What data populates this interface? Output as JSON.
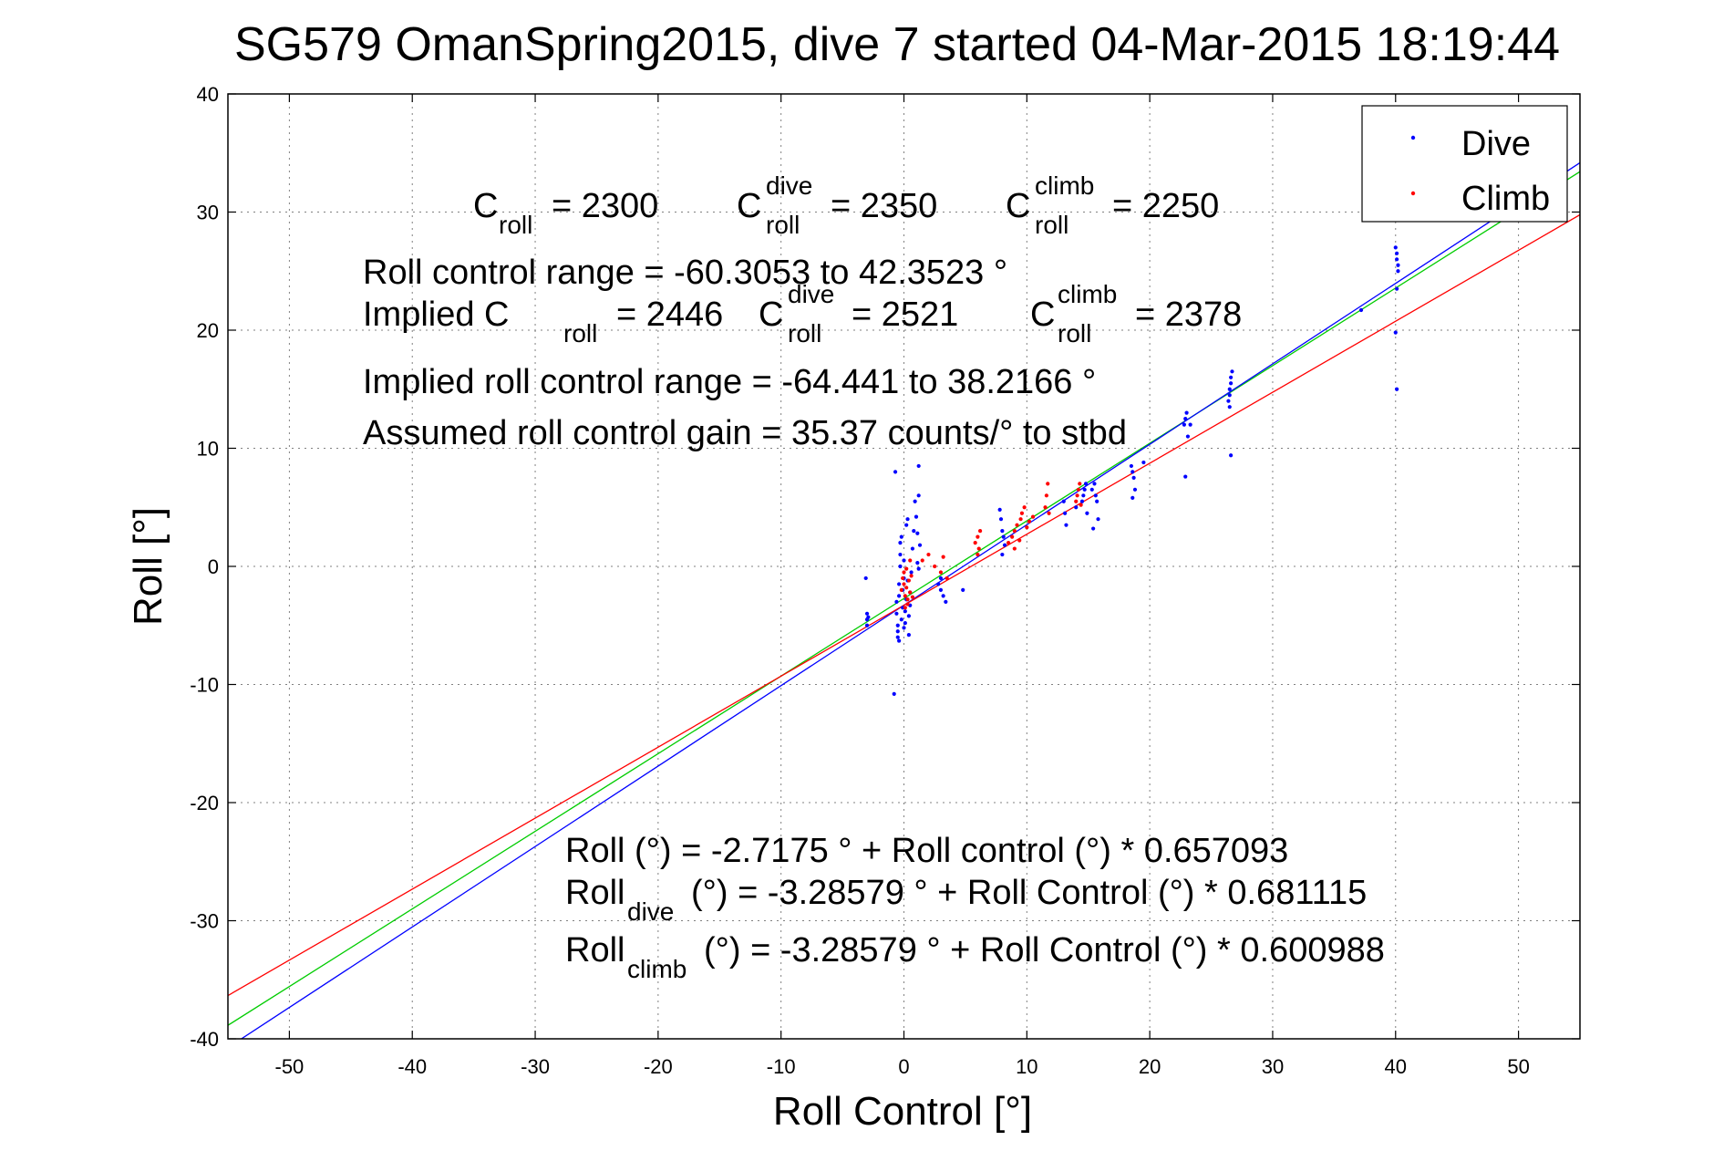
{
  "chart_data": {
    "type": "scatter",
    "title": "SG579 OmanSpring2015, dive 7 started 04-Mar-2015 18:19:44",
    "xlabel": "Roll Control [°]",
    "ylabel": "Roll [°]",
    "xlim": [
      -55,
      55
    ],
    "ylim": [
      -40,
      40
    ],
    "xticks": [
      -50,
      -40,
      -30,
      -20,
      -10,
      0,
      10,
      20,
      30,
      40,
      50
    ],
    "yticks": [
      -40,
      -30,
      -20,
      -10,
      0,
      10,
      20,
      30,
      40
    ],
    "grid": true,
    "legend": {
      "placement": "top-right",
      "entries": [
        "Dive",
        "Climb"
      ]
    },
    "colors": {
      "dive": "#0000ff",
      "climb": "#ff0000",
      "combined_fit": "#00cc00"
    },
    "series": [
      {
        "name": "Dive",
        "color": "#0000ff",
        "points": [
          [
            -3.1,
            -1.0
          ],
          [
            -3.0,
            -4.0
          ],
          [
            -3.0,
            -4.5
          ],
          [
            -3.0,
            -5.0
          ],
          [
            -2.9,
            -4.3
          ],
          [
            -0.8,
            -10.8
          ],
          [
            -0.7,
            8.0
          ],
          [
            -0.6,
            -3.0
          ],
          [
            -0.6,
            -4.0
          ],
          [
            -0.5,
            -5.0
          ],
          [
            -0.5,
            -5.5
          ],
          [
            -0.5,
            -6.0
          ],
          [
            -0.4,
            -6.3
          ],
          [
            -0.4,
            -2.5
          ],
          [
            -0.4,
            -1.5
          ],
          [
            -0.3,
            0.0
          ],
          [
            -0.3,
            1.0
          ],
          [
            -0.3,
            2.0
          ],
          [
            -0.2,
            2.5
          ],
          [
            -0.2,
            -4.5
          ],
          [
            -0.1,
            -3.5
          ],
          [
            -0.1,
            -2.0
          ],
          [
            0.0,
            -1.0
          ],
          [
            0.0,
            0.5
          ],
          [
            0.0,
            -5.2
          ],
          [
            0.1,
            -4.8
          ],
          [
            0.1,
            -3.8
          ],
          [
            0.2,
            -2.8
          ],
          [
            0.2,
            3.5
          ],
          [
            0.3,
            4.0
          ],
          [
            0.3,
            -1.2
          ],
          [
            0.4,
            -4.2
          ],
          [
            0.4,
            -5.8
          ],
          [
            0.5,
            -3.3
          ],
          [
            0.5,
            -2.2
          ],
          [
            0.6,
            -0.5
          ],
          [
            0.7,
            1.5
          ],
          [
            0.8,
            3.0
          ],
          [
            0.9,
            5.5
          ],
          [
            1.0,
            4.2
          ],
          [
            1.1,
            2.8
          ],
          [
            1.1,
            0.3
          ],
          [
            1.2,
            -0.2
          ],
          [
            1.3,
            1.8
          ],
          [
            1.2,
            6.0
          ],
          [
            1.2,
            8.5
          ],
          [
            2.8,
            -1.5
          ],
          [
            3.0,
            -2.0
          ],
          [
            3.2,
            -2.5
          ],
          [
            3.4,
            -3.0
          ],
          [
            3.0,
            -1.0
          ],
          [
            4.8,
            -2.0
          ],
          [
            7.8,
            4.8
          ],
          [
            7.9,
            4.0
          ],
          [
            8.0,
            3.0
          ],
          [
            8.1,
            2.5
          ],
          [
            8.2,
            1.8
          ],
          [
            8.0,
            1.0
          ],
          [
            13.0,
            5.5
          ],
          [
            13.1,
            4.5
          ],
          [
            13.2,
            3.5
          ],
          [
            14.0,
            5.0
          ],
          [
            14.5,
            5.5
          ],
          [
            14.6,
            6.0
          ],
          [
            14.7,
            6.5
          ],
          [
            14.8,
            7.0
          ],
          [
            14.9,
            4.5
          ],
          [
            15.3,
            6.5
          ],
          [
            15.5,
            7.0
          ],
          [
            15.6,
            6.0
          ],
          [
            15.7,
            5.5
          ],
          [
            15.8,
            4.0
          ],
          [
            15.4,
            3.2
          ],
          [
            18.5,
            8.5
          ],
          [
            18.6,
            8.0
          ],
          [
            18.7,
            7.5
          ],
          [
            18.8,
            6.5
          ],
          [
            18.6,
            5.8
          ],
          [
            19.5,
            8.8
          ],
          [
            22.8,
            12.0
          ],
          [
            22.9,
            12.5
          ],
          [
            23.0,
            13.0
          ],
          [
            23.1,
            11.0
          ],
          [
            22.9,
            7.6
          ],
          [
            23.3,
            12.0
          ],
          [
            26.4,
            14.0
          ],
          [
            26.5,
            14.5
          ],
          [
            26.5,
            15.0
          ],
          [
            26.6,
            15.5
          ],
          [
            26.6,
            16.0
          ],
          [
            26.7,
            16.5
          ],
          [
            26.5,
            13.5
          ],
          [
            26.6,
            9.4
          ],
          [
            37.2,
            21.7
          ],
          [
            40.0,
            27.0
          ],
          [
            40.1,
            26.5
          ],
          [
            40.1,
            26.0
          ],
          [
            40.2,
            25.5
          ],
          [
            40.2,
            25.0
          ],
          [
            40.1,
            23.5
          ],
          [
            40.0,
            19.8
          ],
          [
            40.1,
            15.0
          ]
        ]
      },
      {
        "name": "Climb",
        "color": "#ff0000",
        "points": [
          [
            -0.2,
            -2.0
          ],
          [
            -0.1,
            -1.0
          ],
          [
            0.0,
            -0.5
          ],
          [
            0.0,
            -1.5
          ],
          [
            0.1,
            -2.5
          ],
          [
            0.1,
            -3.5
          ],
          [
            0.2,
            -0.2
          ],
          [
            0.2,
            -1.8
          ],
          [
            0.3,
            -2.8
          ],
          [
            0.3,
            -3.2
          ],
          [
            0.4,
            -1.2
          ],
          [
            0.5,
            -2.2
          ],
          [
            0.6,
            -0.8
          ],
          [
            0.7,
            -2.6
          ],
          [
            0.5,
            0.5
          ],
          [
            1.5,
            0.5
          ],
          [
            2.0,
            1.0
          ],
          [
            2.5,
            0.0
          ],
          [
            3.0,
            -0.5
          ],
          [
            3.5,
            -1.0
          ],
          [
            3.2,
            0.8
          ],
          [
            5.8,
            2.0
          ],
          [
            6.0,
            2.5
          ],
          [
            6.2,
            3.0
          ],
          [
            6.0,
            1.0
          ],
          [
            6.1,
            1.5
          ],
          [
            8.5,
            2.0
          ],
          [
            8.8,
            2.5
          ],
          [
            9.0,
            3.0
          ],
          [
            9.2,
            3.5
          ],
          [
            9.5,
            4.0
          ],
          [
            9.6,
            4.5
          ],
          [
            9.8,
            5.0
          ],
          [
            9.0,
            1.5
          ],
          [
            10.2,
            3.8
          ],
          [
            10.5,
            4.2
          ],
          [
            10.0,
            3.3
          ],
          [
            9.4,
            2.2
          ],
          [
            11.5,
            5.0
          ],
          [
            11.6,
            6.0
          ],
          [
            11.7,
            7.0
          ],
          [
            11.8,
            4.5
          ],
          [
            14.0,
            5.5
          ],
          [
            14.1,
            6.0
          ],
          [
            14.2,
            6.5
          ],
          [
            14.3,
            7.0
          ],
          [
            14.4,
            5.2
          ]
        ]
      }
    ],
    "fit_lines": [
      {
        "name": "combined",
        "color": "#00cc00",
        "intercept": -2.7175,
        "slope": 0.657093
      },
      {
        "name": "dive",
        "color": "#0000ff",
        "intercept": -3.28579,
        "slope": 0.681115
      },
      {
        "name": "climb",
        "color": "#ff0000",
        "intercept": -3.28579,
        "slope": 0.600988
      }
    ],
    "annotations": {
      "c_roll": "= 2300",
      "c_roll_dive": "= 2350",
      "c_roll_climb": "= 2250",
      "range": "Roll control range = -60.3053 to 42.3523 °",
      "implied_prefix": "Implied C",
      "implied_c_roll": "= 2446",
      "implied_c_dive": "= 2521",
      "implied_c_climb": "= 2378",
      "implied_range": "Implied roll control range = -64.441 to 38.2166 °",
      "gain": "Assumed roll control gain = 35.37 counts/° to stbd",
      "eq_all": "Roll (°) = -2.7175 ° + Roll control (°) * 0.657093",
      "eq_dive": "(°) = -3.28579 ° + Roll Control (°) * 0.681115",
      "eq_climb": "(°) = -3.28579 ° + Roll Control (°) * 0.600988",
      "c_letter": "C",
      "roll_word": "Roll",
      "sub_roll": "roll",
      "sup_dive": "dive",
      "sup_climb": "climb",
      "sub_dive": "dive",
      "sub_climb": "climb"
    }
  }
}
